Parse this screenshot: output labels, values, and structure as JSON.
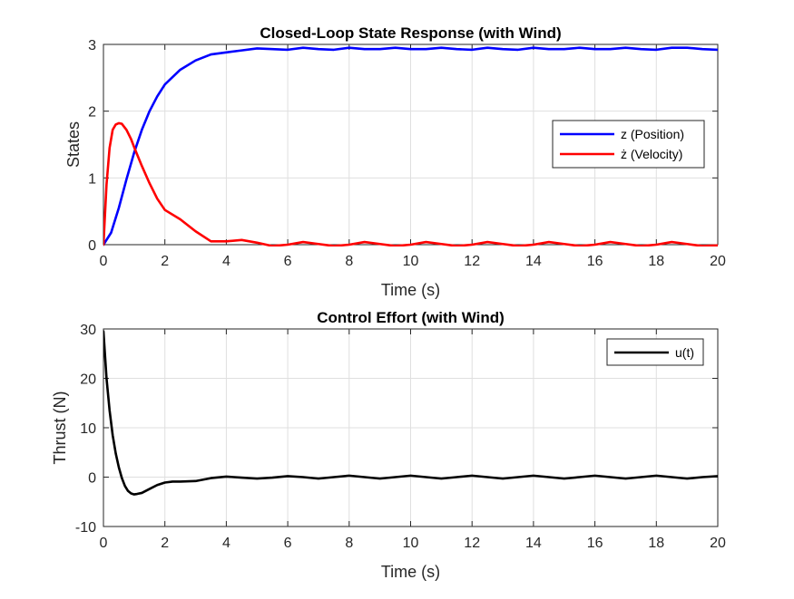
{
  "chart_data": [
    {
      "type": "line",
      "title": "Closed-Loop State Response (with Wind)",
      "xlabel": "Time (s)",
      "ylabel": "States",
      "xlim": [
        0,
        20
      ],
      "ylim": [
        0,
        3
      ],
      "xticks": [
        0,
        2,
        4,
        6,
        8,
        10,
        12,
        14,
        16,
        18,
        20
      ],
      "yticks": [
        0,
        1,
        2,
        3
      ],
      "grid": true,
      "legend_position": "right",
      "series": [
        {
          "name": "z (Position)",
          "color": "#0000ff",
          "x": [
            0,
            0.25,
            0.5,
            0.75,
            1.0,
            1.25,
            1.5,
            1.75,
            2.0,
            2.5,
            3.0,
            3.5,
            4.0,
            4.5,
            5.0,
            5.5,
            6.0,
            6.5,
            7.0,
            7.5,
            8.0,
            8.5,
            9.0,
            9.5,
            10.0,
            10.5,
            11.0,
            11.5,
            12.0,
            12.5,
            13.0,
            13.5,
            14.0,
            14.5,
            15.0,
            15.5,
            16.0,
            16.5,
            17.0,
            17.5,
            18.0,
            18.5,
            19.0,
            19.5,
            20.0
          ],
          "y": [
            0,
            0.18,
            0.55,
            0.98,
            1.38,
            1.72,
            2.0,
            2.22,
            2.4,
            2.62,
            2.76,
            2.85,
            2.88,
            2.91,
            2.94,
            2.93,
            2.92,
            2.95,
            2.93,
            2.92,
            2.95,
            2.93,
            2.93,
            2.95,
            2.93,
            2.93,
            2.95,
            2.93,
            2.92,
            2.95,
            2.93,
            2.92,
            2.95,
            2.93,
            2.93,
            2.95,
            2.93,
            2.93,
            2.95,
            2.93,
            2.92,
            2.95,
            2.95,
            2.93,
            2.92
          ]
        },
        {
          "name": "ż (Velocity)",
          "color": "#ff0000",
          "x": [
            0,
            0.1,
            0.2,
            0.3,
            0.4,
            0.5,
            0.6,
            0.75,
            0.9,
            1.0,
            1.25,
            1.5,
            1.75,
            2.0,
            2.5,
            3.0,
            3.5,
            4.0,
            4.5,
            5.0,
            5.5,
            6.0,
            6.5,
            7.0,
            7.5,
            8.0,
            8.5,
            9.0,
            9.5,
            10.0,
            10.5,
            11.0,
            11.5,
            12.0,
            12.5,
            13.0,
            13.5,
            14.0,
            14.5,
            15.0,
            15.5,
            16.0,
            16.5,
            17.0,
            17.5,
            18.0,
            18.5,
            19.0,
            19.5,
            20.0
          ],
          "y": [
            0,
            0.9,
            1.45,
            1.72,
            1.8,
            1.82,
            1.81,
            1.72,
            1.58,
            1.46,
            1.18,
            0.92,
            0.69,
            0.52,
            0.38,
            0.2,
            0.05,
            0.05,
            0.07,
            0.03,
            -0.02,
            0.0,
            0.04,
            0.01,
            -0.02,
            0.0,
            0.04,
            0.01,
            -0.02,
            0.0,
            0.04,
            0.01,
            -0.02,
            0.0,
            0.04,
            0.01,
            -0.02,
            0.0,
            0.04,
            0.01,
            -0.02,
            0.0,
            0.04,
            0.01,
            -0.02,
            0.0,
            0.04,
            0.01,
            -0.02,
            -0.01
          ]
        }
      ]
    },
    {
      "type": "line",
      "title": "Control Effort (with Wind)",
      "xlabel": "Time (s)",
      "ylabel": "Thrust (N)",
      "xlim": [
        0,
        20
      ],
      "ylim": [
        -10,
        30
      ],
      "xticks": [
        0,
        2,
        4,
        6,
        8,
        10,
        12,
        14,
        16,
        18,
        20
      ],
      "yticks": [
        -10,
        0,
        10,
        20,
        30
      ],
      "grid": true,
      "legend_position": "top-right",
      "series": [
        {
          "name": "u(t)",
          "color": "#000000",
          "x": [
            0,
            0.1,
            0.2,
            0.3,
            0.4,
            0.5,
            0.6,
            0.7,
            0.8,
            0.9,
            1.0,
            1.1,
            1.25,
            1.5,
            1.75,
            2.0,
            2.25,
            2.5,
            3.0,
            3.5,
            4.0,
            4.5,
            5.0,
            5.5,
            6.0,
            6.5,
            7.0,
            7.5,
            8.0,
            8.5,
            9.0,
            9.5,
            10.0,
            10.5,
            11.0,
            11.5,
            12.0,
            12.5,
            13.0,
            13.5,
            14.0,
            14.5,
            15.0,
            15.5,
            16.0,
            16.5,
            17.0,
            17.5,
            18.0,
            18.5,
            19.0,
            19.5,
            20.0
          ],
          "y": [
            29.5,
            20.0,
            13.5,
            8.5,
            4.8,
            2.0,
            -0.2,
            -1.8,
            -2.8,
            -3.3,
            -3.5,
            -3.4,
            -3.2,
            -2.4,
            -1.6,
            -1.1,
            -0.9,
            -0.9,
            -0.8,
            -0.2,
            0.1,
            -0.1,
            -0.3,
            -0.1,
            0.2,
            0.0,
            -0.3,
            0.0,
            0.3,
            0.0,
            -0.3,
            0.0,
            0.3,
            0.0,
            -0.3,
            0.0,
            0.3,
            0.0,
            -0.3,
            0.0,
            0.3,
            0.0,
            -0.3,
            0.0,
            0.3,
            0.0,
            -0.3,
            0.0,
            0.3,
            0.0,
            -0.3,
            0.0,
            0.2
          ]
        }
      ]
    }
  ]
}
